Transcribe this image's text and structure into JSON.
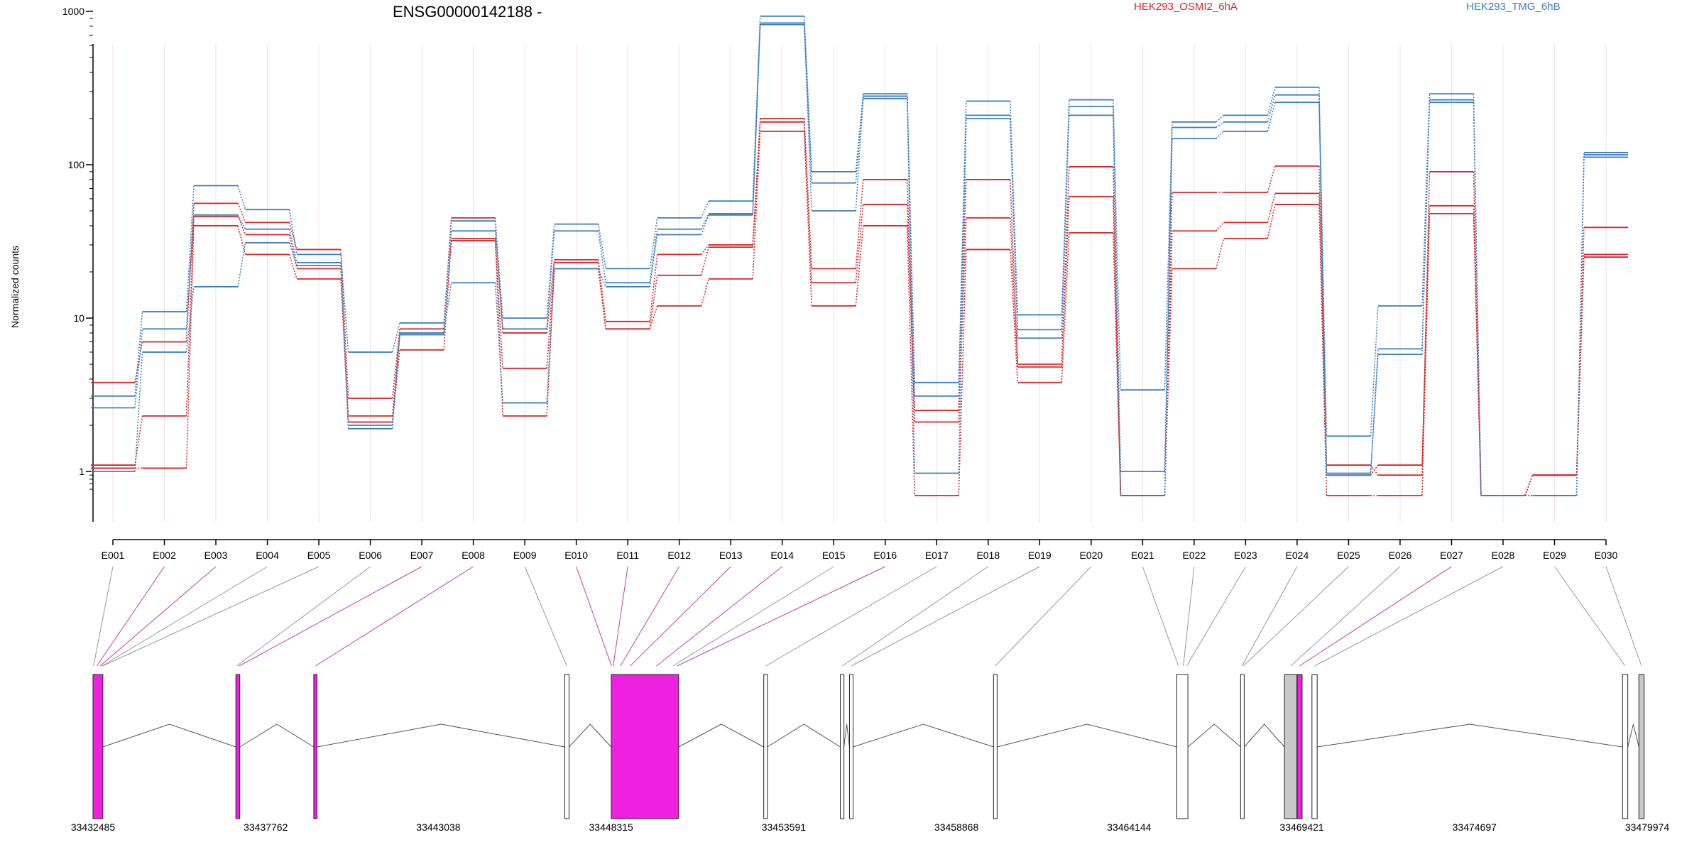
{
  "chart_data": {
    "type": "line",
    "title": "ENSG00000142188 -",
    "ylabel": "Normalized counts",
    "yscale": "log",
    "ylim": [
      0.5,
      1000
    ],
    "yticks": [
      1,
      10,
      100,
      1000
    ],
    "ytick_labels": [
      "1",
      "10",
      "100",
      "1000"
    ],
    "categories": [
      "E001",
      "E002",
      "E003",
      "E004",
      "E005",
      "E006",
      "E007",
      "E008",
      "E009",
      "E010",
      "E011",
      "E012",
      "E013",
      "E014",
      "E015",
      "E016",
      "E017",
      "E018",
      "E019",
      "E020",
      "E021",
      "E022",
      "E023",
      "E024",
      "E025",
      "E026",
      "E027",
      "E028",
      "E029",
      "E030"
    ],
    "legend": [
      {
        "label": "HEK293_OSMI2_6hA",
        "color": "#d62728"
      },
      {
        "label": "HEK293_TMG_6hB",
        "color": "#3a7ebf"
      }
    ],
    "series": [
      {
        "group": "HEK293_OSMI2_6hA",
        "color": "#d62728",
        "values": [
          3.8,
          7,
          56,
          42,
          28,
          3,
          8.5,
          45,
          8,
          24,
          9.5,
          26,
          30,
          200,
          21,
          80,
          2.5,
          80,
          5,
          97,
          0.5,
          66,
          66,
          98,
          1.1,
          0.9,
          90,
          0.5,
          0.9,
          39
        ]
      },
      {
        "group": "HEK293_OSMI2_6hA",
        "color": "#d62728",
        "values": [
          1.1,
          2.3,
          46,
          35,
          21,
          2.3,
          7.8,
          33,
          4.7,
          23,
          8.5,
          19,
          29,
          190,
          17,
          55,
          2.1,
          45,
          4.8,
          62,
          0.5,
          37,
          42,
          65,
          0.9,
          1.1,
          54,
          0.5,
          0.9,
          26
        ]
      },
      {
        "group": "HEK293_OSMI2_6hA",
        "color": "#d62728",
        "values": [
          1.05,
          1.05,
          40,
          26,
          18,
          2.1,
          6.2,
          32,
          2.3,
          21,
          8.5,
          12,
          18,
          165,
          12,
          40,
          0.5,
          28,
          3.8,
          36,
          0.5,
          21,
          33,
          55,
          0.5,
          0.5,
          48,
          0.5,
          0.9,
          25
        ]
      },
      {
        "group": "HEK293_TMG_6hB",
        "color": "#3a7ebf",
        "values": [
          3.1,
          11,
          73,
          51,
          26,
          6,
          9.3,
          43,
          10,
          41,
          21,
          45,
          58,
          930,
          90,
          290,
          3.8,
          260,
          10.5,
          265,
          3.4,
          190,
          210,
          320,
          1.7,
          12,
          290,
          0.5,
          0.5,
          120
        ]
      },
      {
        "group": "HEK293_TMG_6hB",
        "color": "#3a7ebf",
        "values": [
          2.6,
          8.5,
          47,
          38,
          23,
          1.9,
          7.8,
          37,
          8.5,
          37,
          17,
          38,
          48,
          840,
          76,
          280,
          3.1,
          210,
          8.4,
          240,
          1,
          175,
          190,
          285,
          0.95,
          6.3,
          265,
          0.5,
          0.5,
          116
        ]
      },
      {
        "group": "HEK293_TMG_6hB",
        "color": "#3a7ebf",
        "values": [
          1,
          6,
          16,
          31,
          22,
          2,
          8,
          17,
          2.8,
          21,
          16,
          35,
          47,
          820,
          50,
          270,
          0.95,
          200,
          7.4,
          210,
          0.5,
          148,
          165,
          255,
          0.9,
          5.8,
          255,
          0.5,
          0.5,
          112
        ]
      }
    ],
    "grid": {
      "vertical": true,
      "horizontal": false
    },
    "gene_model": {
      "coord_range": [
        33432485,
        33479974
      ],
      "coord_ticks": [
        "33432485",
        "33437762",
        "33443038",
        "33448315",
        "33453591",
        "33458868",
        "33464144",
        "33469421",
        "33474697",
        "33479974"
      ],
      "exons": [
        {
          "start": 33432485,
          "end": 33432785,
          "fill": "#f020e0"
        },
        {
          "start": 33436850,
          "end": 33436970,
          "fill": "#f020e0"
        },
        {
          "start": 33439230,
          "end": 33439330,
          "fill": "#f020e0"
        },
        {
          "start": 33446900,
          "end": 33447030,
          "fill": "#ffffff"
        },
        {
          "start": 33448320,
          "end": 33450380,
          "fill": "#f020e0"
        },
        {
          "start": 33452980,
          "end": 33453090,
          "fill": "#ffffff"
        },
        {
          "start": 33455320,
          "end": 33455430,
          "fill": "#ffffff"
        },
        {
          "start": 33455600,
          "end": 33455710,
          "fill": "#ffffff"
        },
        {
          "start": 33460000,
          "end": 33460110,
          "fill": "#ffffff"
        },
        {
          "start": 33465600,
          "end": 33465940,
          "fill": "#ffffff"
        },
        {
          "start": 33467550,
          "end": 33467660,
          "fill": "#ffffff"
        },
        {
          "start": 33468890,
          "end": 33469270,
          "fill": "#c8c8c8"
        },
        {
          "start": 33469280,
          "end": 33469430,
          "fill": "#f020e0"
        },
        {
          "start": 33469730,
          "end": 33469890,
          "fill": "#ffffff"
        },
        {
          "start": 33479220,
          "end": 33479380,
          "fill": "#ffffff"
        },
        {
          "start": 33479720,
          "end": 33479880,
          "fill": "#c8c8c8"
        }
      ],
      "introns": [
        [
          33432785,
          33436850
        ],
        [
          33436970,
          33439230
        ],
        [
          33439330,
          33446900
        ],
        [
          33447030,
          33448320
        ],
        [
          33450380,
          33452980
        ],
        [
          33453090,
          33455320
        ],
        [
          33455430,
          33455600
        ],
        [
          33455710,
          33460000
        ],
        [
          33460110,
          33465600
        ],
        [
          33465940,
          33467550
        ],
        [
          33467660,
          33468890
        ],
        [
          33469890,
          33479220
        ],
        [
          33479380,
          33479720
        ]
      ],
      "exon_links": [
        {
          "label": "E001",
          "coord": 33432500,
          "color": "#999999"
        },
        {
          "label": "E002",
          "coord": 33432600,
          "color": "#c040b0"
        },
        {
          "label": "E003",
          "coord": 33432700,
          "color": "#c040b0"
        },
        {
          "label": "E004",
          "coord": 33432760,
          "color": "#999999"
        },
        {
          "label": "E005",
          "coord": 33432780,
          "color": "#999999"
        },
        {
          "label": "E006",
          "coord": 33436870,
          "color": "#999999"
        },
        {
          "label": "E007",
          "coord": 33436950,
          "color": "#c040b0"
        },
        {
          "label": "E008",
          "coord": 33439280,
          "color": "#c040b0"
        },
        {
          "label": "E009",
          "coord": 33446960,
          "color": "#999999"
        },
        {
          "label": "E010",
          "coord": 33448330,
          "color": "#c040b0"
        },
        {
          "label": "E011",
          "coord": 33448380,
          "color": "#c040b0"
        },
        {
          "label": "E012",
          "coord": 33448600,
          "color": "#c040b0"
        },
        {
          "label": "E013",
          "coord": 33448900,
          "color": "#c040b0"
        },
        {
          "label": "E014",
          "coord": 33449700,
          "color": "#c040b0"
        },
        {
          "label": "E015",
          "coord": 33450200,
          "color": "#999999"
        },
        {
          "label": "E016",
          "coord": 33450330,
          "color": "#c040b0"
        },
        {
          "label": "E017",
          "coord": 33453040,
          "color": "#999999"
        },
        {
          "label": "E018",
          "coord": 33455380,
          "color": "#999999"
        },
        {
          "label": "E019",
          "coord": 33455650,
          "color": "#999999"
        },
        {
          "label": "E020",
          "coord": 33460050,
          "color": "#999999"
        },
        {
          "label": "E021",
          "coord": 33465650,
          "color": "#999999"
        },
        {
          "label": "E022",
          "coord": 33465800,
          "color": "#999999"
        },
        {
          "label": "E023",
          "coord": 33465900,
          "color": "#999999"
        },
        {
          "label": "E024",
          "coord": 33467590,
          "color": "#999999"
        },
        {
          "label": "E025",
          "coord": 33467630,
          "color": "#999999"
        },
        {
          "label": "E026",
          "coord": 33469080,
          "color": "#999999"
        },
        {
          "label": "E027",
          "coord": 33469350,
          "color": "#c040b0"
        },
        {
          "label": "E028",
          "coord": 33469810,
          "color": "#999999"
        },
        {
          "label": "E029",
          "coord": 33479300,
          "color": "#999999"
        },
        {
          "label": "E030",
          "coord": 33479800,
          "color": "#999999"
        }
      ]
    }
  }
}
